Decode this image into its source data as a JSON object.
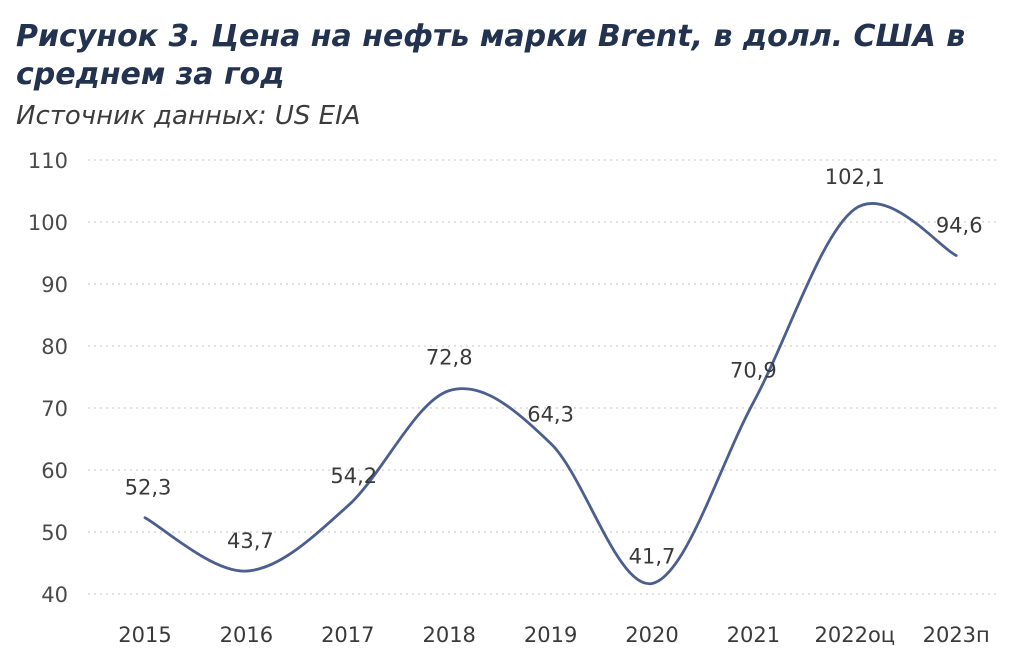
{
  "chart_data": {
    "type": "line",
    "title": "Рисунок 3. Цена на нефть марки Brent, в долл. США в среднем за год",
    "subtitle": "Источник данных:  US EIA",
    "categories": [
      "2015",
      "2016",
      "2017",
      "2018",
      "2019",
      "2020",
      "2021",
      "2022оц",
      "2023п"
    ],
    "series": [
      {
        "values": [
          52.3,
          43.7,
          54.2,
          72.8,
          64.3,
          41.7,
          70.9,
          102.1,
          94.6
        ],
        "labels": [
          "52,3",
          "43,7",
          "54,2",
          "72,8",
          "64,3",
          "41,7",
          "70,9",
          "102,1",
          "94,6"
        ],
        "color": "#4a5f8f"
      }
    ],
    "yticks": [
      40,
      50,
      60,
      70,
      80,
      90,
      100,
      110
    ],
    "ylim": [
      40,
      110
    ],
    "grid": true,
    "legend": "none",
    "smooth": true
  }
}
